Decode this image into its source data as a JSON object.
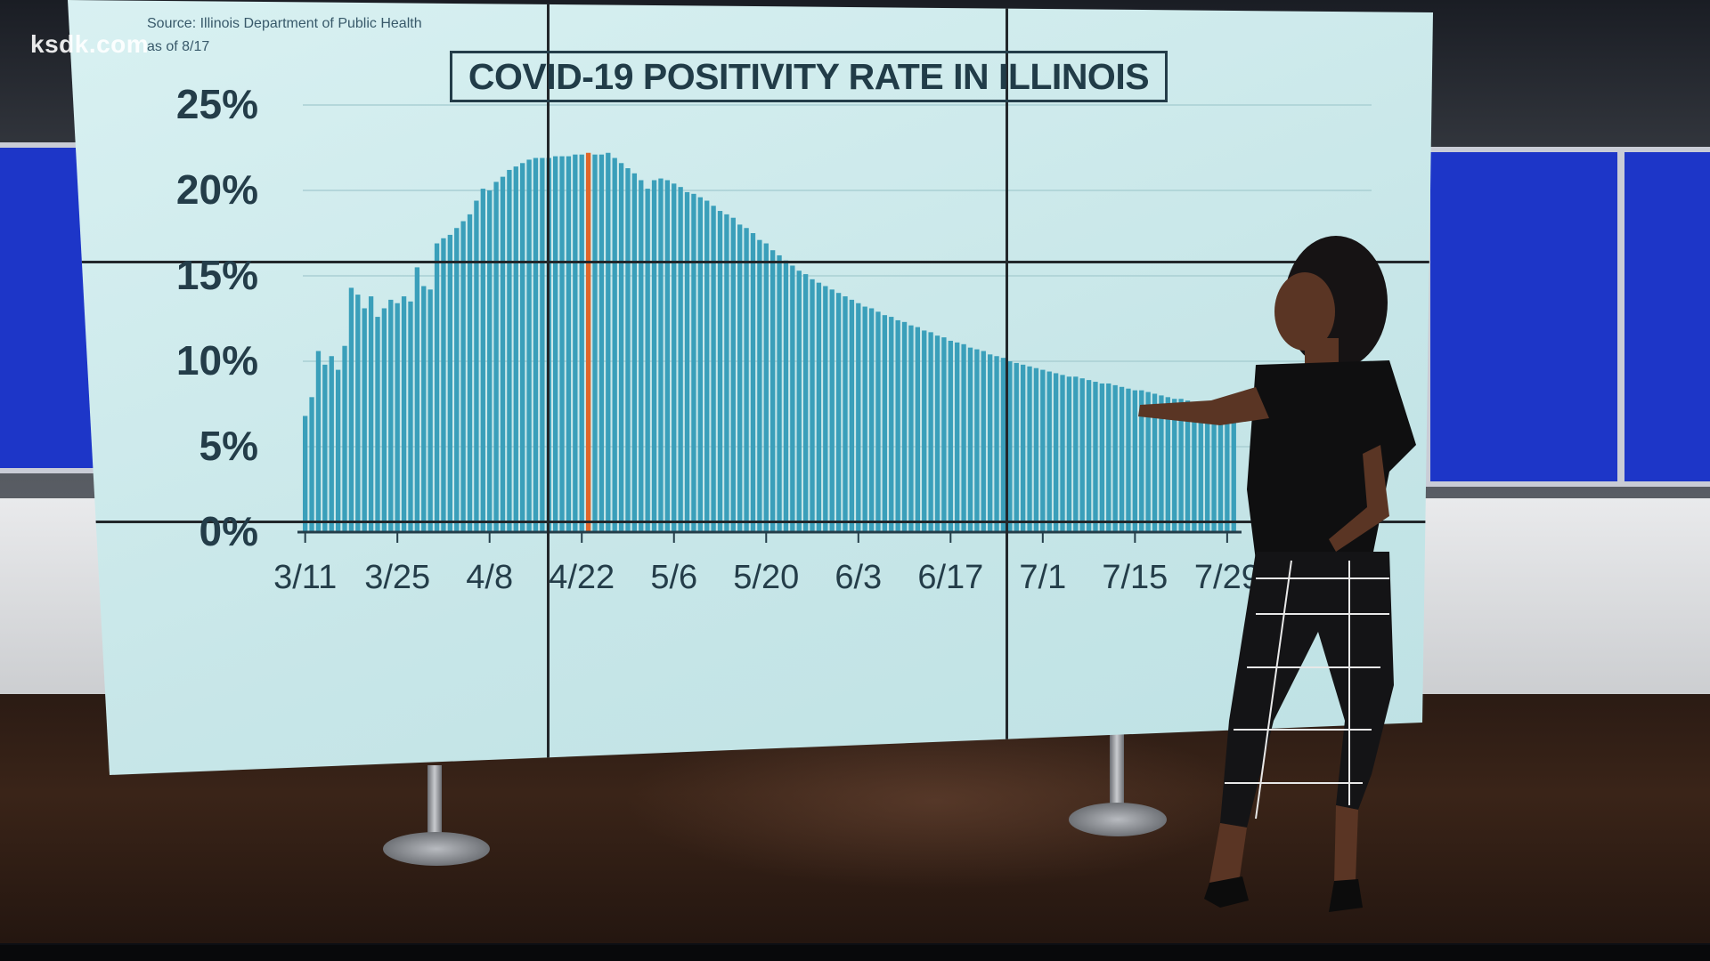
{
  "broadcast": {
    "logo_text": "ksdk.com"
  },
  "source": {
    "line1": "Source: Illinois Department of Public Health",
    "line2": "as of 8/17"
  },
  "chart_data": {
    "type": "bar",
    "title": "COVID-19 POSITIVITY RATE IN ILLINOIS",
    "xlabel": "",
    "ylabel": "",
    "ylim": [
      0,
      25
    ],
    "yticks": [
      "25%",
      "20%",
      "15%",
      "10%",
      "5%",
      "0%"
    ],
    "xticks": [
      "3/11",
      "3/25",
      "4/8",
      "4/22",
      "5/6",
      "5/20",
      "6/3",
      "6/17",
      "7/1",
      "7/15",
      "7/29"
    ],
    "first_date": "3/11",
    "highlight_category": "4/23",
    "colors": {
      "bar": "#3a9fba",
      "highlight": "#e0662a",
      "axis": "#243d49"
    },
    "values": [
      6.8,
      7.9,
      10.6,
      9.8,
      10.3,
      9.5,
      10.9,
      14.3,
      13.9,
      13.1,
      13.8,
      12.6,
      13.1,
      13.6,
      13.4,
      13.8,
      13.5,
      15.5,
      14.4,
      14.2,
      16.9,
      17.2,
      17.4,
      17.8,
      18.2,
      18.6,
      19.4,
      20.1,
      20.0,
      20.5,
      20.8,
      21.2,
      21.4,
      21.6,
      21.8,
      21.9,
      21.9,
      21.9,
      22.0,
      22.0,
      22.0,
      22.1,
      22.1,
      22.2,
      22.1,
      22.1,
      22.2,
      21.9,
      21.6,
      21.3,
      21.0,
      20.6,
      20.1,
      20.6,
      20.7,
      20.6,
      20.4,
      20.2,
      19.9,
      19.8,
      19.6,
      19.4,
      19.1,
      18.8,
      18.6,
      18.4,
      18.0,
      17.8,
      17.5,
      17.1,
      16.9,
      16.5,
      16.2,
      15.9,
      15.6,
      15.3,
      15.1,
      14.8,
      14.6,
      14.4,
      14.2,
      14.0,
      13.8,
      13.6,
      13.4,
      13.2,
      13.1,
      12.9,
      12.7,
      12.6,
      12.4,
      12.3,
      12.1,
      12.0,
      11.8,
      11.7,
      11.5,
      11.4,
      11.2,
      11.1,
      11.0,
      10.8,
      10.7,
      10.6,
      10.4,
      10.3,
      10.2,
      10.0,
      9.9,
      9.8,
      9.7,
      9.6,
      9.5,
      9.4,
      9.3,
      9.2,
      9.1,
      9.1,
      9.0,
      8.9,
      8.8,
      8.7,
      8.7,
      8.6,
      8.5,
      8.4,
      8.3,
      8.3,
      8.2,
      8.1,
      8.0,
      7.9,
      7.8,
      7.8,
      7.7,
      7.6,
      7.5,
      7.5,
      7.4,
      7.3,
      7.2,
      7.2
    ]
  }
}
